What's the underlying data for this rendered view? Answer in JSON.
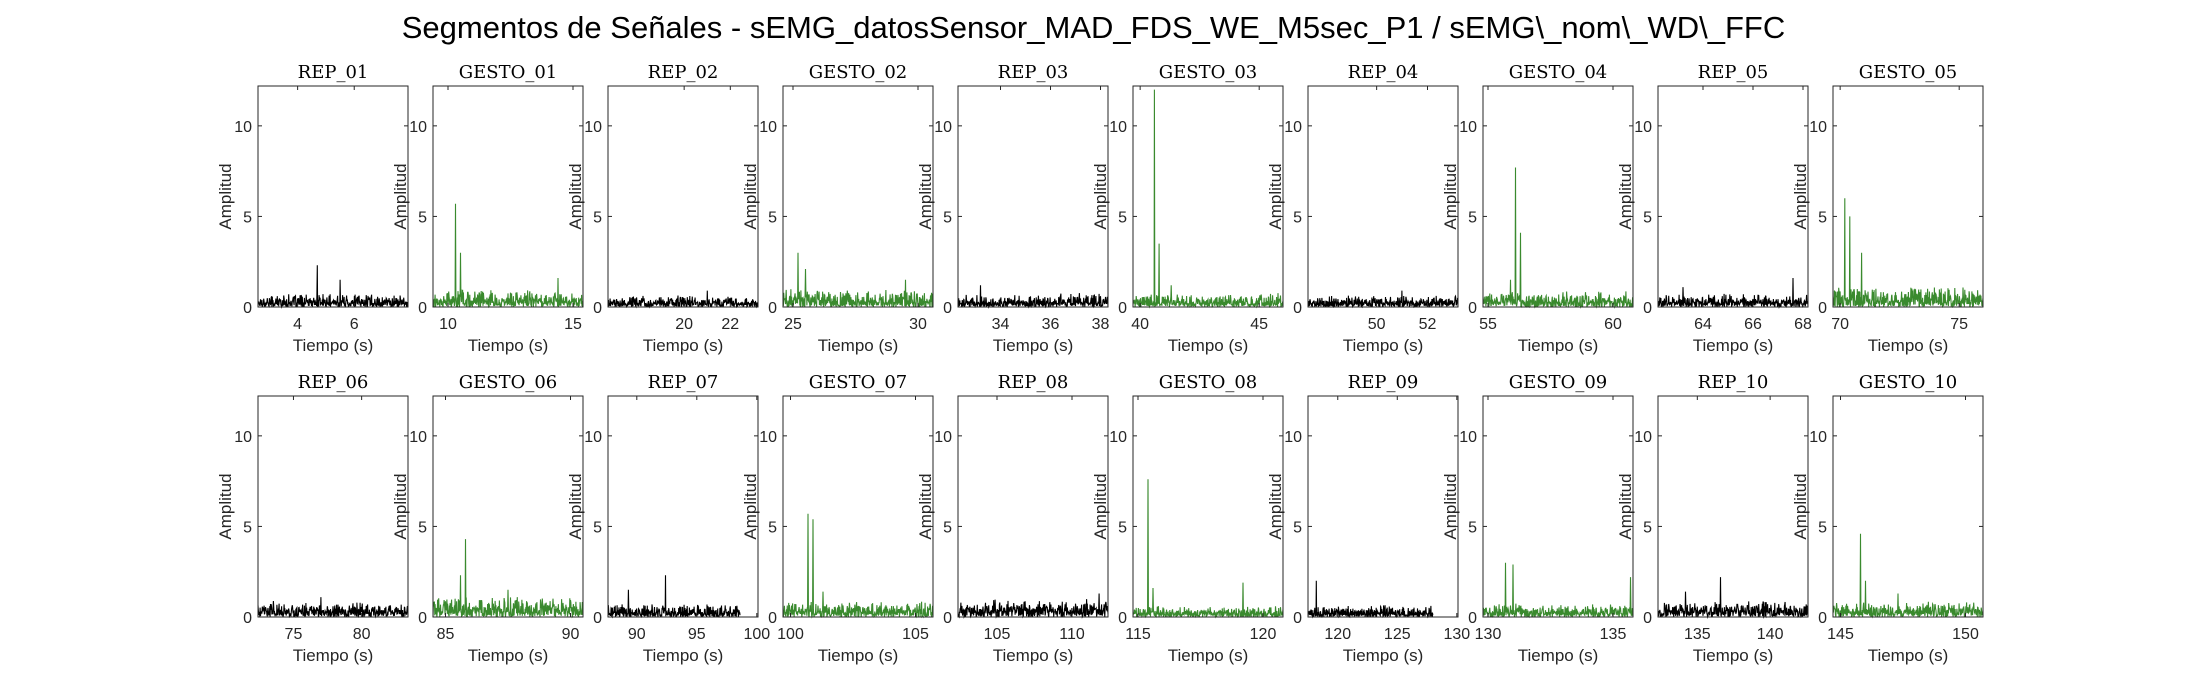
{
  "suptitle": "Segmentos de Señales - sEMG_datosSensor_MAD_FDS_WE_M5sec_P1 / sEMG\\_nom\\_WD\\_FFC",
  "colors": {
    "rep": "#000000",
    "gesto": "#3a8a2e"
  },
  "chart_data": [
    {
      "type": "line",
      "title": "REP_01",
      "xlabel": "Tiempo (s)",
      "ylabel": "Amplitud",
      "kind": "rep",
      "xlim": [
        2.6,
        7.9
      ],
      "ylim": [
        0,
        12.2
      ],
      "xticks": [
        4,
        6
      ],
      "yticks": [
        0,
        5,
        10
      ],
      "peaks": [
        {
          "x": 4.7,
          "y": 2.3
        },
        {
          "x": 5.5,
          "y": 1.5
        }
      ],
      "baseline": 0.6
    },
    {
      "type": "line",
      "title": "GESTO_01",
      "xlabel": "Tiempo (s)",
      "ylabel": "Amplitud",
      "kind": "gesto",
      "xlim": [
        9.4,
        15.4
      ],
      "ylim": [
        0,
        12.2
      ],
      "xticks": [
        10,
        15
      ],
      "yticks": [
        0,
        5,
        10
      ],
      "peaks": [
        {
          "x": 10.3,
          "y": 5.7
        },
        {
          "x": 10.5,
          "y": 3.0
        },
        {
          "x": 14.4,
          "y": 1.6
        }
      ],
      "baseline": 0.8
    },
    {
      "type": "line",
      "title": "REP_02",
      "xlabel": "Tiempo (s)",
      "ylabel": "Amplitud",
      "kind": "rep",
      "xlim": [
        16.7,
        23.2
      ],
      "ylim": [
        0,
        12.2
      ],
      "xticks": [
        20,
        22
      ],
      "yticks": [
        0,
        5,
        10
      ],
      "peaks": [
        {
          "x": 21.0,
          "y": 0.9
        }
      ],
      "baseline": 0.5
    },
    {
      "type": "line",
      "title": "GESTO_02",
      "xlabel": "Tiempo (s)",
      "ylabel": "Amplitud",
      "kind": "gesto",
      "xlim": [
        24.6,
        30.6
      ],
      "ylim": [
        0,
        12.2
      ],
      "xticks": [
        25,
        30
      ],
      "yticks": [
        0,
        5,
        10
      ],
      "peaks": [
        {
          "x": 25.2,
          "y": 3.0
        },
        {
          "x": 25.5,
          "y": 2.1
        },
        {
          "x": 29.5,
          "y": 1.5
        }
      ],
      "baseline": 0.8
    },
    {
      "type": "line",
      "title": "REP_03",
      "xlabel": "Tiempo (s)",
      "ylabel": "Amplitud",
      "kind": "rep",
      "xlim": [
        32.3,
        38.3
      ],
      "ylim": [
        0,
        12.2
      ],
      "xticks": [
        34,
        36,
        38
      ],
      "yticks": [
        0,
        5,
        10
      ],
      "peaks": [
        {
          "x": 33.2,
          "y": 1.2
        }
      ],
      "baseline": 0.6
    },
    {
      "type": "line",
      "title": "GESTO_03",
      "xlabel": "Tiempo (s)",
      "ylabel": "Amplitud",
      "kind": "gesto",
      "xlim": [
        39.7,
        46.0
      ],
      "ylim": [
        0,
        12.2
      ],
      "xticks": [
        40,
        45
      ],
      "yticks": [
        0,
        5,
        10
      ],
      "peaks": [
        {
          "x": 40.6,
          "y": 12.0
        },
        {
          "x": 40.8,
          "y": 3.5
        },
        {
          "x": 41.3,
          "y": 1.2
        }
      ],
      "baseline": 0.6
    },
    {
      "type": "line",
      "title": "REP_04",
      "xlabel": "Tiempo (s)",
      "ylabel": "Amplitud",
      "kind": "rep",
      "xlim": [
        47.3,
        53.2
      ],
      "ylim": [
        0,
        12.2
      ],
      "xticks": [
        50,
        52
      ],
      "yticks": [
        0,
        5,
        10
      ],
      "peaks": [
        {
          "x": 51.0,
          "y": 0.9
        }
      ],
      "baseline": 0.5
    },
    {
      "type": "line",
      "title": "GESTO_04",
      "xlabel": "Tiempo (s)",
      "ylabel": "Amplitud",
      "kind": "gesto",
      "xlim": [
        54.8,
        60.8
      ],
      "ylim": [
        0,
        12.2
      ],
      "xticks": [
        55,
        60
      ],
      "yticks": [
        0,
        5,
        10
      ],
      "peaks": [
        {
          "x": 56.1,
          "y": 7.7
        },
        {
          "x": 56.3,
          "y": 4.1
        },
        {
          "x": 55.9,
          "y": 1.5
        }
      ],
      "baseline": 0.7
    },
    {
      "type": "line",
      "title": "REP_05",
      "xlabel": "Tiempo (s)",
      "ylabel": "Amplitud",
      "kind": "rep",
      "xlim": [
        62.2,
        68.2
      ],
      "ylim": [
        0,
        12.2
      ],
      "xticks": [
        64,
        66,
        68
      ],
      "yticks": [
        0,
        5,
        10
      ],
      "peaks": [
        {
          "x": 67.6,
          "y": 1.6
        },
        {
          "x": 63.2,
          "y": 1.1
        }
      ],
      "baseline": 0.6
    },
    {
      "type": "line",
      "title": "GESTO_05",
      "xlabel": "Tiempo (s)",
      "ylabel": "Amplitud",
      "kind": "gesto",
      "xlim": [
        69.7,
        76.0
      ],
      "ylim": [
        0,
        12.2
      ],
      "xticks": [
        70,
        75
      ],
      "yticks": [
        0,
        5,
        10
      ],
      "peaks": [
        {
          "x": 70.2,
          "y": 6.0
        },
        {
          "x": 70.4,
          "y": 5.0
        },
        {
          "x": 70.9,
          "y": 3.0
        }
      ],
      "baseline": 0.9
    },
    {
      "type": "line",
      "title": "REP_06",
      "xlabel": "Tiempo (s)",
      "ylabel": "Amplitud",
      "kind": "rep",
      "xlim": [
        72.4,
        83.4
      ],
      "ylim": [
        0,
        12.2
      ],
      "xticks": [
        75,
        80
      ],
      "yticks": [
        0,
        5,
        10
      ],
      "peaks": [
        {
          "x": 77.0,
          "y": 1.1
        }
      ],
      "baseline": 0.7
    },
    {
      "type": "line",
      "title": "GESTO_06",
      "xlabel": "Tiempo (s)",
      "ylabel": "Amplitud",
      "kind": "gesto",
      "xlim": [
        84.5,
        90.5
      ],
      "ylim": [
        0,
        12.2
      ],
      "xticks": [
        85,
        90
      ],
      "yticks": [
        0,
        5,
        10
      ],
      "peaks": [
        {
          "x": 85.8,
          "y": 4.3
        },
        {
          "x": 85.6,
          "y": 2.3
        },
        {
          "x": 87.5,
          "y": 1.5
        }
      ],
      "baseline": 0.9
    },
    {
      "type": "line",
      "title": "REP_07",
      "xlabel": "Tiempo (s)",
      "ylabel": "Amplitud",
      "kind": "rep",
      "xlim": [
        87.6,
        100.1
      ],
      "ylim": [
        0,
        12.2
      ],
      "xticks": [
        90,
        95,
        100
      ],
      "yticks": [
        0,
        5,
        10
      ],
      "peaks": [
        {
          "x": 92.4,
          "y": 2.3
        },
        {
          "x": 89.3,
          "y": 1.5
        }
      ],
      "baseline": 0.6,
      "dataEnd": 98.6
    },
    {
      "type": "line",
      "title": "GESTO_07",
      "xlabel": "Tiempo (s)",
      "ylabel": "Amplitud",
      "kind": "gesto",
      "xlim": [
        99.7,
        105.7
      ],
      "ylim": [
        0,
        12.2
      ],
      "xticks": [
        100,
        105
      ],
      "yticks": [
        0,
        5,
        10
      ],
      "peaks": [
        {
          "x": 100.7,
          "y": 5.7
        },
        {
          "x": 100.9,
          "y": 5.4
        },
        {
          "x": 101.3,
          "y": 1.4
        }
      ],
      "baseline": 0.7
    },
    {
      "type": "line",
      "title": "REP_08",
      "xlabel": "Tiempo (s)",
      "ylabel": "Amplitud",
      "kind": "rep",
      "xlim": [
        102.4,
        112.4
      ],
      "ylim": [
        0,
        12.2
      ],
      "xticks": [
        105,
        110
      ],
      "yticks": [
        0,
        5,
        10
      ],
      "peaks": [
        {
          "x": 111.8,
          "y": 1.3
        }
      ],
      "baseline": 0.8
    },
    {
      "type": "line",
      "title": "GESTO_08",
      "xlabel": "Tiempo (s)",
      "ylabel": "Amplitud",
      "kind": "gesto",
      "xlim": [
        114.8,
        120.8
      ],
      "ylim": [
        0,
        12.2
      ],
      "xticks": [
        115,
        120
      ],
      "yticks": [
        0,
        5,
        10
      ],
      "peaks": [
        {
          "x": 115.4,
          "y": 7.6
        },
        {
          "x": 115.6,
          "y": 1.6
        },
        {
          "x": 119.2,
          "y": 1.9
        }
      ],
      "baseline": 0.5
    },
    {
      "type": "line",
      "title": "REP_09",
      "xlabel": "Tiempo (s)",
      "ylabel": "Amplitud",
      "kind": "rep",
      "xlim": [
        117.5,
        130.1
      ],
      "ylim": [
        0,
        12.2
      ],
      "xticks": [
        120,
        125,
        130
      ],
      "yticks": [
        0,
        5,
        10
      ],
      "peaks": [
        {
          "x": 118.2,
          "y": 2.0
        }
      ],
      "baseline": 0.5,
      "dataEnd": 128.0
    },
    {
      "type": "line",
      "title": "GESTO_09",
      "xlabel": "Tiempo (s)",
      "ylabel": "Amplitud",
      "kind": "gesto",
      "xlim": [
        129.8,
        135.8
      ],
      "ylim": [
        0,
        12.2
      ],
      "xticks": [
        130,
        135
      ],
      "yticks": [
        0,
        5,
        10
      ],
      "peaks": [
        {
          "x": 130.7,
          "y": 3.0
        },
        {
          "x": 131.0,
          "y": 2.9
        },
        {
          "x": 135.7,
          "y": 2.2
        }
      ],
      "baseline": 0.6
    },
    {
      "type": "line",
      "title": "REP_10",
      "xlabel": "Tiempo (s)",
      "ylabel": "Amplitud",
      "kind": "rep",
      "xlim": [
        132.3,
        142.6
      ],
      "ylim": [
        0,
        12.2
      ],
      "xticks": [
        135,
        140
      ],
      "yticks": [
        0,
        5,
        10
      ],
      "peaks": [
        {
          "x": 136.6,
          "y": 2.2
        },
        {
          "x": 134.2,
          "y": 1.4
        }
      ],
      "baseline": 0.7
    },
    {
      "type": "line",
      "title": "GESTO_10",
      "xlabel": "Tiempo (s)",
      "ylabel": "Amplitud",
      "kind": "gesto",
      "xlim": [
        144.7,
        150.7
      ],
      "ylim": [
        0,
        12.2
      ],
      "xticks": [
        145,
        150
      ],
      "yticks": [
        0,
        5,
        10
      ],
      "peaks": [
        {
          "x": 145.8,
          "y": 4.6
        },
        {
          "x": 146.0,
          "y": 2.0
        },
        {
          "x": 147.3,
          "y": 1.3
        }
      ],
      "baseline": 0.7
    }
  ]
}
